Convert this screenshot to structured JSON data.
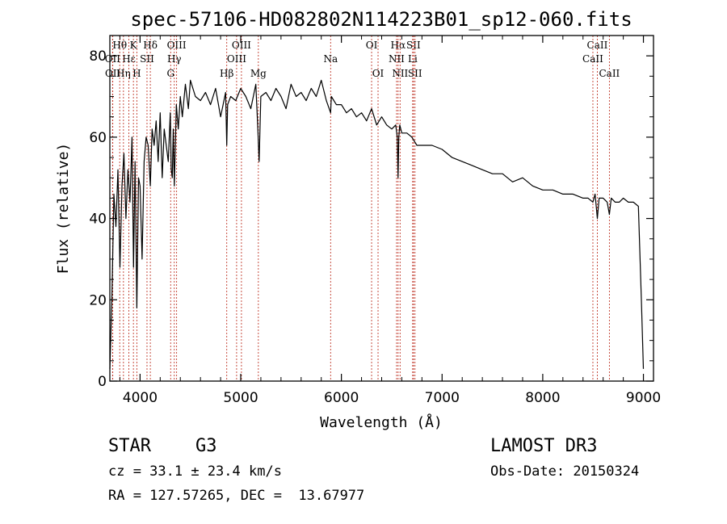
{
  "chart_data": {
    "type": "line",
    "title": "spec-57106-HD082802N114223B01_sp12-060.fits",
    "xlabel": "Wavelength (Å)",
    "ylabel": "Flux (relative)",
    "xlim": [
      3700,
      9100
    ],
    "ylim": [
      0,
      85
    ],
    "xticks": [
      4000,
      5000,
      6000,
      7000,
      8000,
      9000
    ],
    "yticks": [
      0,
      20,
      40,
      60,
      80
    ],
    "series": [
      {
        "name": "flux",
        "x": [
          3700,
          3720,
          3740,
          3760,
          3780,
          3800,
          3820,
          3840,
          3860,
          3880,
          3900,
          3920,
          3935,
          3950,
          3968,
          3985,
          4000,
          4020,
          4040,
          4060,
          4080,
          4102,
          4120,
          4140,
          4160,
          4180,
          4200,
          4220,
          4240,
          4260,
          4280,
          4300,
          4310,
          4320,
          4330,
          4340,
          4360,
          4380,
          4400,
          4420,
          4450,
          4480,
          4500,
          4550,
          4600,
          4650,
          4700,
          4750,
          4800,
          4850,
          4861,
          4870,
          4900,
          4950,
          5000,
          5050,
          5100,
          5150,
          5170,
          5183,
          5200,
          5250,
          5300,
          5350,
          5400,
          5450,
          5500,
          5550,
          5600,
          5650,
          5700,
          5750,
          5800,
          5850,
          5893,
          5900,
          5950,
          6000,
          6050,
          6100,
          6150,
          6200,
          6250,
          6300,
          6350,
          6400,
          6450,
          6500,
          6540,
          6555,
          6563,
          6570,
          6580,
          6600,
          6650,
          6700,
          6750,
          6800,
          6900,
          7000,
          7100,
          7200,
          7300,
          7400,
          7500,
          7600,
          7700,
          7800,
          7900,
          8000,
          8100,
          8200,
          8300,
          8400,
          8450,
          8498,
          8520,
          8542,
          8560,
          8600,
          8640,
          8662,
          8680,
          8720,
          8760,
          8800,
          8850,
          8900,
          8950,
          8980,
          9000
        ],
        "y": [
          3,
          20,
          46,
          38,
          52,
          28,
          48,
          56,
          40,
          52,
          44,
          60,
          28,
          54,
          18,
          50,
          48,
          30,
          54,
          60,
          58,
          48,
          62,
          58,
          64,
          54,
          66,
          50,
          62,
          58,
          54,
          66,
          52,
          50,
          62,
          48,
          68,
          62,
          70,
          65,
          73,
          67,
          74,
          70,
          69,
          71,
          68,
          72,
          65,
          71,
          58,
          68,
          70,
          69,
          72,
          70,
          67,
          73,
          62,
          54,
          70,
          71,
          69,
          72,
          70,
          67,
          73,
          70,
          71,
          69,
          72,
          70,
          74,
          69,
          66,
          70,
          68,
          68,
          66,
          67,
          65,
          66,
          64,
          67,
          63,
          65,
          63,
          62,
          63,
          60,
          50,
          60,
          63,
          61,
          61,
          60,
          58,
          58,
          58,
          57,
          55,
          54,
          53,
          52,
          51,
          51,
          49,
          50,
          48,
          47,
          47,
          46,
          46,
          45,
          45,
          44,
          46,
          40,
          45,
          45,
          44,
          41,
          45,
          44,
          44,
          45,
          44,
          44,
          43,
          20,
          3
        ]
      }
    ],
    "spectral_lines": [
      {
        "label": "Hθ",
        "wavelength": 3798,
        "row": 0
      },
      {
        "label": "OII",
        "wavelength": 3727,
        "row": 1
      },
      {
        "label": "OII",
        "wavelength": 3729,
        "row": 2
      },
      {
        "label": "Hε",
        "wavelength": 3889,
        "row": 1
      },
      {
        "label": "Hη",
        "wavelength": 3835,
        "row": 2
      },
      {
        "label": "K",
        "wavelength": 3934,
        "row": 0
      },
      {
        "label": "H",
        "wavelength": 3968,
        "row": 2
      },
      {
        "label": "SII",
        "wavelength": 4069,
        "row": 1
      },
      {
        "label": "Hδ",
        "wavelength": 4102,
        "row": 0
      },
      {
        "label": "OIII",
        "wavelength": 4363,
        "row": 0
      },
      {
        "label": "Hγ",
        "wavelength": 4340,
        "row": 1
      },
      {
        "label": "G",
        "wavelength": 4304,
        "row": 2
      },
      {
        "label": "Hβ",
        "wavelength": 4861,
        "row": 2
      },
      {
        "label": "OIII",
        "wavelength": 5007,
        "row": 0
      },
      {
        "label": "OIII",
        "wavelength": 4959,
        "row": 1
      },
      {
        "label": "Mg",
        "wavelength": 5175,
        "row": 2
      },
      {
        "label": "Na",
        "wavelength": 5893,
        "row": 1
      },
      {
        "label": "OI",
        "wavelength": 6300,
        "row": 0
      },
      {
        "label": "OI",
        "wavelength": 6364,
        "row": 2
      },
      {
        "label": "Hα",
        "wavelength": 6563,
        "row": 0
      },
      {
        "label": "NII",
        "wavelength": 6548,
        "row": 1
      },
      {
        "label": "NII",
        "wavelength": 6583,
        "row": 2
      },
      {
        "label": "SII",
        "wavelength": 6716,
        "row": 0
      },
      {
        "label": "Li",
        "wavelength": 6708,
        "row": 1
      },
      {
        "label": "SII",
        "wavelength": 6731,
        "row": 2
      },
      {
        "label": "CaII",
        "wavelength": 8542,
        "row": 0
      },
      {
        "label": "CaII",
        "wavelength": 8498,
        "row": 1
      },
      {
        "label": "CaII",
        "wavelength": 8662,
        "row": 2
      }
    ]
  },
  "info": {
    "object_class": "STAR",
    "subclass": "G3",
    "survey": "LAMOST DR3",
    "cz": "cz = 33.1 ± 23.4 km/s",
    "obs_date": "Obs-Date: 20150324",
    "coords": "RA = 127.57265, DEC =  13.67977"
  },
  "colors": {
    "line_marker": "#c0392b",
    "spectrum": "#000000"
  }
}
